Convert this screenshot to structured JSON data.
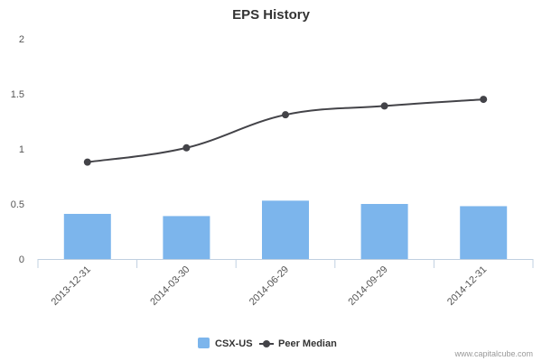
{
  "chart_data": {
    "type": "bar",
    "title": "EPS History",
    "categories": [
      "2013-12-31",
      "2014-03-30",
      "2014-06-29",
      "2014-09-29",
      "2014-12-31"
    ],
    "ylim": [
      0,
      2
    ],
    "yticks": [
      0,
      0.5,
      1,
      1.5,
      2
    ],
    "ytick_labels": [
      "0",
      "0.5",
      "1",
      "1.5",
      "2"
    ],
    "grid": false,
    "legend_position": "bottom-center",
    "series": [
      {
        "name": "CSX-US",
        "type": "bar",
        "color": "#7cb5ec",
        "values": [
          0.41,
          0.39,
          0.53,
          0.5,
          0.48
        ]
      },
      {
        "name": "Peer Median",
        "type": "line",
        "color": "#434348",
        "values": [
          0.88,
          1.01,
          1.31,
          1.39,
          1.45
        ]
      }
    ]
  },
  "credit": "www.capitalcube.com"
}
